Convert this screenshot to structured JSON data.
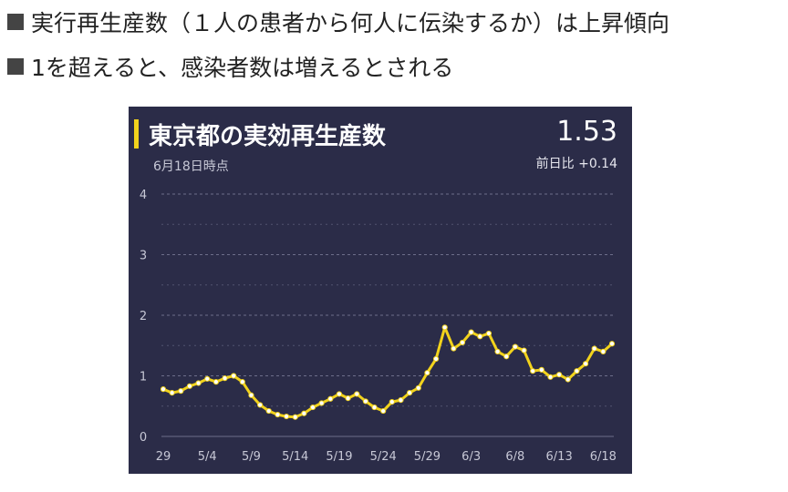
{
  "bullets": [
    "実行再生産数（１人の患者から何人に伝染するか）は上昇傾向",
    "1を超えると、感染者数は増えるとされる"
  ],
  "card": {
    "title": "東京都の実効再生産数",
    "value": "1.53",
    "date_label": "6月18日時点",
    "delta_label": "前日比 +0.14"
  },
  "colors": {
    "background": "#2b2c48",
    "line": "#f2d31c",
    "grid": "#6d6e8a",
    "text": "#ffffff"
  },
  "chart_data": {
    "type": "line",
    "title": "東京都の実効再生産数",
    "ylim": [
      0,
      4
    ],
    "yticks": [
      "0",
      "1",
      "2",
      "3",
      "4"
    ],
    "xtick_labels": [
      "29",
      "5/4",
      "5/9",
      "5/14",
      "5/19",
      "5/24",
      "5/29",
      "6/3",
      "6/8",
      "6/13",
      "6/18"
    ],
    "grid": true,
    "series": [
      {
        "values": [
          0.78,
          0.72,
          0.75,
          0.83,
          0.88,
          0.95,
          0.9,
          0.96,
          1.0,
          0.9,
          0.68,
          0.52,
          0.42,
          0.36,
          0.33,
          0.32,
          0.38,
          0.48,
          0.55,
          0.62,
          0.7,
          0.63,
          0.7,
          0.58,
          0.48,
          0.42,
          0.57,
          0.6,
          0.72,
          0.8,
          1.05,
          1.28,
          1.8,
          1.45,
          1.55,
          1.72,
          1.65,
          1.7,
          1.4,
          1.32,
          1.48,
          1.42,
          1.08,
          1.1,
          0.98,
          1.02,
          0.94,
          1.08,
          1.2,
          1.45,
          1.4,
          1.53
        ]
      }
    ]
  }
}
